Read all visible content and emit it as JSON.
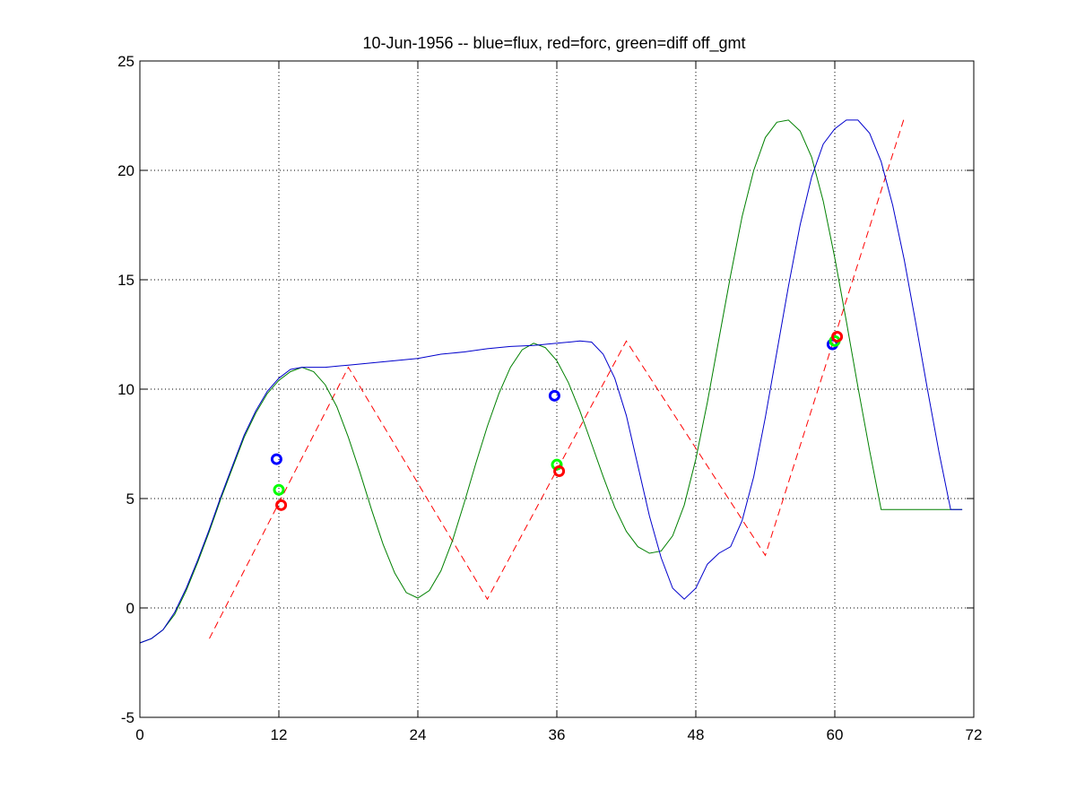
{
  "chart_data": {
    "type": "line",
    "title": "10-Jun-1956 -- blue=flux, red=forc, green=diff off_gmt",
    "xlabel": "",
    "ylabel": "",
    "xlim": [
      0,
      72
    ],
    "ylim": [
      -5,
      25
    ],
    "xticks": [
      0,
      12,
      24,
      36,
      48,
      60,
      72
    ],
    "yticks": [
      -5,
      0,
      5,
      10,
      15,
      20,
      25
    ],
    "grid": true,
    "grid_style": "dotted",
    "series": [
      {
        "id": "flux",
        "color": "#0000cc",
        "style": "solid",
        "x": [
          0,
          1,
          2,
          3,
          4,
          5,
          6,
          7,
          8,
          9,
          10,
          11,
          12,
          13,
          14,
          15,
          16,
          18,
          20,
          22,
          24,
          26,
          28,
          30,
          32,
          34,
          36,
          38,
          39,
          40,
          41,
          42,
          43,
          44,
          45,
          46,
          47,
          48,
          49,
          50,
          51,
          52,
          53,
          54,
          55,
          56,
          57,
          58,
          59,
          60,
          61,
          62,
          63,
          64,
          65,
          66,
          67,
          68,
          69,
          70,
          71
        ],
        "y": [
          -1.6,
          -1.4,
          -1.0,
          -0.2,
          0.9,
          2.2,
          3.6,
          5.1,
          6.5,
          7.9,
          9.0,
          9.9,
          10.5,
          10.9,
          11.0,
          11.0,
          11.0,
          11.1,
          11.2,
          11.3,
          11.4,
          11.6,
          11.7,
          11.85,
          11.95,
          12.0,
          12.1,
          12.2,
          12.15,
          11.6,
          10.5,
          8.8,
          6.5,
          4.2,
          2.3,
          0.9,
          0.4,
          0.9,
          2.0,
          2.5,
          2.8,
          4.0,
          6.0,
          8.7,
          11.7,
          14.7,
          17.5,
          19.7,
          21.2,
          21.9,
          22.3,
          22.3,
          21.7,
          20.4,
          18.4,
          15.9,
          13.0,
          10.0,
          7.1,
          4.5,
          4.5
        ]
      },
      {
        "id": "forc",
        "color": "#ff0000",
        "style": "dashed",
        "x": [
          6,
          18,
          30,
          42,
          54,
          66
        ],
        "y": [
          -1.4,
          11.0,
          0.4,
          12.2,
          2.4,
          22.4
        ]
      },
      {
        "id": "diff",
        "color": "#008000",
        "style": "solid",
        "x": [
          0,
          1,
          2,
          3,
          4,
          5,
          6,
          7,
          8,
          9,
          10,
          11,
          12,
          13,
          14,
          15,
          16,
          17,
          18,
          19,
          20,
          21,
          22,
          23,
          24,
          25,
          26,
          27,
          28,
          29,
          30,
          31,
          32,
          33,
          34,
          35,
          36,
          37,
          38,
          39,
          40,
          41,
          42,
          43,
          44,
          45,
          46,
          47,
          48,
          49,
          50,
          51,
          52,
          53,
          54,
          55,
          56,
          57,
          58,
          59,
          60,
          61,
          62,
          63,
          64,
          65,
          66,
          67,
          68,
          69,
          70,
          71
        ],
        "y": [
          -1.6,
          -1.4,
          -1.0,
          -0.3,
          0.8,
          2.1,
          3.5,
          5.0,
          6.4,
          7.8,
          8.9,
          9.8,
          10.4,
          10.8,
          11.0,
          10.8,
          10.2,
          9.2,
          7.8,
          6.2,
          4.5,
          2.9,
          1.6,
          0.7,
          0.45,
          0.8,
          1.7,
          3.1,
          4.8,
          6.6,
          8.3,
          9.8,
          11.0,
          11.8,
          12.1,
          11.9,
          11.3,
          10.3,
          9.0,
          7.5,
          6.0,
          4.6,
          3.5,
          2.8,
          2.5,
          2.6,
          3.3,
          4.7,
          6.8,
          9.4,
          12.3,
          15.2,
          17.9,
          20.0,
          21.5,
          22.2,
          22.3,
          21.8,
          20.6,
          18.6,
          16.0,
          13.1,
          10.1,
          7.2,
          4.5,
          4.5,
          4.5,
          4.5,
          4.5,
          4.5,
          4.5,
          4.5
        ]
      }
    ],
    "markers": [
      {
        "series": "flux",
        "x": 11.8,
        "y": 6.8,
        "color": "#0000ff"
      },
      {
        "series": "diff",
        "x": 12.0,
        "y": 5.4,
        "color": "#00ff00"
      },
      {
        "series": "forc",
        "x": 12.2,
        "y": 4.7,
        "color": "#ff0000"
      },
      {
        "series": "flux",
        "x": 35.8,
        "y": 9.7,
        "color": "#0000ff"
      },
      {
        "series": "diff",
        "x": 36.0,
        "y": 6.55,
        "color": "#00ff00"
      },
      {
        "series": "forc",
        "x": 36.2,
        "y": 6.25,
        "color": "#ff0000"
      },
      {
        "series": "flux",
        "x": 59.8,
        "y": 12.05,
        "color": "#0000ff"
      },
      {
        "series": "diff",
        "x": 60.0,
        "y": 12.2,
        "color": "#00ff00"
      },
      {
        "series": "forc",
        "x": 60.2,
        "y": 12.4,
        "color": "#ff0000"
      }
    ]
  }
}
